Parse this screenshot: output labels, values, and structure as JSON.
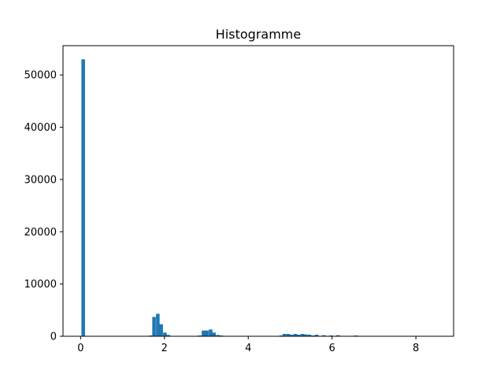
{
  "chart_data": {
    "type": "bar",
    "title": "Histogramme",
    "xlabel": "",
    "ylabel": "",
    "xlim": [
      -0.42,
      8.9
    ],
    "ylim": [
      0,
      55600
    ],
    "xticks": [
      0,
      2,
      4,
      6,
      8
    ],
    "xtick_labels": [
      "0",
      "2",
      "4",
      "6",
      "8"
    ],
    "yticks": [
      0,
      10000,
      20000,
      30000,
      40000,
      50000
    ],
    "ytick_labels": [
      "0",
      "10000",
      "20000",
      "30000",
      "40000",
      "50000"
    ],
    "grid": false,
    "legend": "none",
    "color": "#1f77b4",
    "bin_width": 0.085,
    "bins": [
      {
        "x0": 0.02,
        "count": 53000
      },
      {
        "x0": 1.63,
        "count": 150
      },
      {
        "x0": 1.71,
        "count": 3700
      },
      {
        "x0": 1.8,
        "count": 4300
      },
      {
        "x0": 1.88,
        "count": 2300
      },
      {
        "x0": 1.97,
        "count": 700
      },
      {
        "x0": 2.05,
        "count": 250
      },
      {
        "x0": 2.8,
        "count": 150
      },
      {
        "x0": 2.89,
        "count": 1100
      },
      {
        "x0": 2.97,
        "count": 1100
      },
      {
        "x0": 3.06,
        "count": 1300
      },
      {
        "x0": 3.14,
        "count": 700
      },
      {
        "x0": 3.23,
        "count": 250
      },
      {
        "x0": 3.31,
        "count": 150
      },
      {
        "x0": 4.74,
        "count": 150
      },
      {
        "x0": 4.82,
        "count": 450
      },
      {
        "x0": 4.91,
        "count": 450
      },
      {
        "x0": 4.99,
        "count": 300
      },
      {
        "x0": 5.08,
        "count": 450
      },
      {
        "x0": 5.16,
        "count": 300
      },
      {
        "x0": 5.25,
        "count": 450
      },
      {
        "x0": 5.33,
        "count": 350
      },
      {
        "x0": 5.42,
        "count": 300
      },
      {
        "x0": 5.5,
        "count": 150
      },
      {
        "x0": 5.59,
        "count": 300
      },
      {
        "x0": 5.76,
        "count": 200
      },
      {
        "x0": 5.93,
        "count": 150
      },
      {
        "x0": 6.1,
        "count": 200
      },
      {
        "x0": 6.52,
        "count": 150
      }
    ]
  }
}
